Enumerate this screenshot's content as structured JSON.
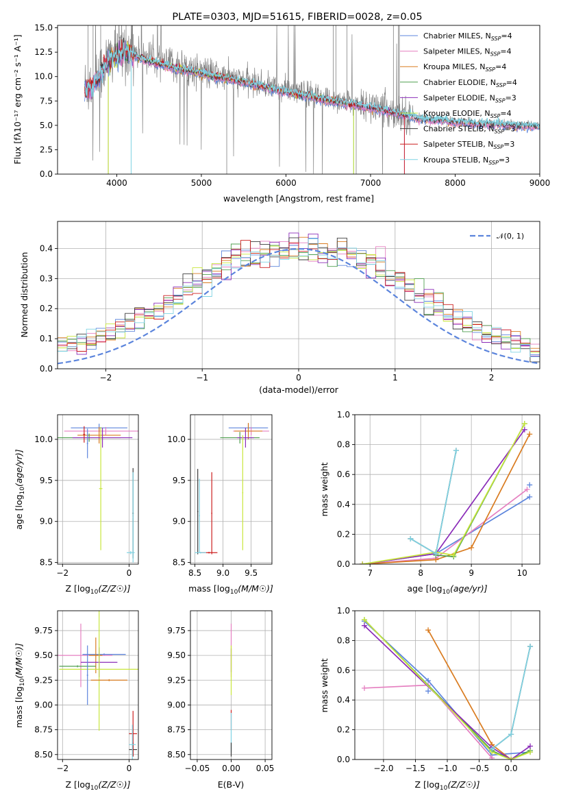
{
  "figure": {
    "title": "PLATE=0303, MJD=51615, FIBERID=0028, z=0.05"
  },
  "colors": [
    "#5b84dc",
    "#e57fc0",
    "#d97b1f",
    "#4f9f4f",
    "#8a2bb8",
    "#c8e63c",
    "#3a3a3a",
    "#cc1f1f",
    "#7fd3e3"
  ],
  "chart_data": [
    {
      "id": "spectrum",
      "type": "line",
      "xlabel": "wavelength [Angstrom, rest frame]",
      "ylabel": "Flux [f_λ 10^-17 erg cm^-2 s^-1 A^-1]",
      "xlim": [
        3300,
        9000
      ],
      "ylim": [
        0,
        15.25
      ],
      "xticks": [
        "4000",
        "5000",
        "6000",
        "7000",
        "8000",
        "9000"
      ],
      "yticks": [
        "0.0",
        "2.5",
        "5.0",
        "7.5",
        "10.0",
        "12.5",
        "15.0"
      ],
      "grid": false,
      "legend_position": "top-right",
      "data_color": "#808080",
      "observed_envelope": {
        "x": [
          3620,
          3700,
          3800,
          3900,
          4000,
          4100,
          4200,
          4300,
          4400,
          4500,
          4600,
          4700,
          4800,
          4900,
          5000,
          5200,
          5400,
          5600,
          5800,
          6000,
          6200,
          6400,
          6600,
          6800,
          7000,
          7200,
          7400,
          7600,
          7800,
          8000,
          8200,
          8400,
          8600,
          8800
        ],
        "y": [
          9.0,
          9.2,
          10.3,
          11.8,
          12.5,
          12.8,
          12.6,
          12.2,
          11.9,
          11.6,
          11.3,
          11.1,
          11.0,
          10.8,
          10.5,
          10.1,
          9.8,
          9.4,
          9.0,
          8.6,
          8.3,
          7.9,
          7.6,
          7.3,
          7.0,
          6.6,
          6.2,
          5.9,
          5.7,
          5.5,
          5.4,
          5.3,
          5.2,
          5.1
        ]
      },
      "model_curve": {
        "x": [
          3620,
          3700,
          3800,
          3900,
          4000,
          4100,
          4200,
          4300,
          4400,
          4500,
          4600,
          4700,
          4800,
          4900,
          5000,
          5200,
          5400,
          5600,
          5800,
          6000,
          6200,
          6400,
          6600,
          6800,
          7000,
          7200,
          7400,
          7600,
          7800,
          8000,
          8200,
          8400,
          8600,
          8800
        ],
        "y": [
          8.6,
          8.9,
          10.0,
          11.6,
          12.1,
          12.5,
          12.2,
          11.8,
          11.5,
          11.3,
          11.0,
          10.8,
          10.7,
          10.5,
          10.3,
          9.9,
          9.6,
          9.2,
          8.8,
          8.4,
          8.1,
          7.7,
          7.4,
          7.1,
          6.8,
          6.4,
          6.0,
          5.6,
          5.5,
          5.3,
          5.2,
          5.1,
          5.0,
          4.9
        ]
      },
      "legend": [
        {
          "label": "Chabrier MILES, N_SSP=4",
          "text": "Chabrier MILES, N",
          "sub": "SSP",
          "tail": "=4"
        },
        {
          "label": "Salpeter MILES, N_SSP=4",
          "text": "Salpeter MILES, N",
          "sub": "SSP",
          "tail": "=4"
        },
        {
          "label": "Kroupa MILES, N_SSP=4",
          "text": "Kroupa MILES, N",
          "sub": "SSP",
          "tail": "=4"
        },
        {
          "label": "Chabrier ELODIE, N_SSP=4",
          "text": "Chabrier ELODIE, N",
          "sub": "SSP",
          "tail": "=4"
        },
        {
          "label": "Salpeter ELODIE, N_SSP=3",
          "text": "Salpeter ELODIE, N",
          "sub": "SSP",
          "tail": "=3"
        },
        {
          "label": "Kroupa ELODIE, N_SSP=4",
          "text": "Kroupa ELODIE, N",
          "sub": "SSP",
          "tail": "=4"
        },
        {
          "label": "Chabrier STELIB, N_SSP=3",
          "text": "Chabrier STELIB, N",
          "sub": "SSP",
          "tail": "=3"
        },
        {
          "label": "Salpeter STELIB, N_SSP=3",
          "text": "Salpeter STELIB, N",
          "sub": "SSP",
          "tail": "=3"
        },
        {
          "label": "Kroupa STELIB, N_SSP=3",
          "text": "Kroupa STELIB, N",
          "sub": "SSP",
          "tail": "=3"
        }
      ]
    },
    {
      "id": "residuals",
      "type": "line",
      "xlabel": "(data-model)/error",
      "ylabel": "Normed distribution",
      "xlim": [
        -2.5,
        2.5
      ],
      "ylim": [
        0,
        0.49
      ],
      "xticks": [
        "−2",
        "−1",
        "0",
        "1",
        "2"
      ],
      "yticks": [
        "0.0",
        "0.1",
        "0.2",
        "0.3",
        "0.4"
      ],
      "grid": true,
      "legend_position": "top-right",
      "legend": [
        {
          "label": "𝒩(0, 1)",
          "style": "dashed",
          "color": "#5b84dc"
        }
      ],
      "normal_pdf": {
        "mu": 0,
        "sigma": 1
      }
    },
    {
      "id": "age_vs_Z",
      "type": "scatter",
      "xlabel": "Z [log10(Z/Z☉)]",
      "ylabel": "age [log10(age/yr)]",
      "xlim": [
        -2.15,
        0.28
      ],
      "ylim": [
        8.48,
        10.3
      ],
      "xticks": [
        "−2",
        "0"
      ],
      "yticks": [
        "8.5",
        "9.0",
        "9.5",
        "10.0"
      ],
      "grid": true,
      "errorbars": [
        {
          "series": 0,
          "x": -0.9,
          "y": 10.14,
          "xerr": 0.85,
          "yerr": 0.05
        },
        {
          "series": 1,
          "x": -0.7,
          "y": 10.1,
          "xerr": 1.25,
          "yerr": 0.05
        },
        {
          "series": 2,
          "x": -0.9,
          "y": 10.05,
          "xerr": 0.65,
          "yerr": 0.1
        },
        {
          "series": 3,
          "x": -1.2,
          "y": 10.02,
          "xerr": 0.95,
          "yerr": 0.05
        },
        {
          "series": 4,
          "x": -0.8,
          "y": 10.02,
          "xerr": 0.9,
          "yerr": 0.12
        },
        {
          "series": 5,
          "x": -0.85,
          "y": 9.4,
          "xerr": 0.05,
          "yerr": 0.75
        },
        {
          "series": 6,
          "x": 0.12,
          "y": 9.1,
          "xerr": 0.02,
          "yerr": 0.55
        },
        {
          "series": 7,
          "x": -1.35,
          "y": 10.06,
          "xerr": 0.03,
          "yerr": 0.1
        },
        {
          "series": 8,
          "x": 0.05,
          "y": 8.62,
          "xerr": 0.12,
          "yerr": 0.02
        },
        {
          "series": 0,
          "x": -1.25,
          "y": 9.95,
          "xerr": 0.02,
          "yerr": 0.18
        },
        {
          "series": 8,
          "x": 0.12,
          "y": 9.05,
          "xerr": 0.01,
          "yerr": 0.55
        }
      ]
    },
    {
      "id": "age_vs_mass",
      "type": "scatter",
      "xlabel": "mass [log10(M/M☉)]",
      "ylabel": "",
      "xlim": [
        8.42,
        9.87
      ],
      "ylim": [
        8.48,
        10.3
      ],
      "xticks": [
        "8.5",
        "9.0",
        "9.5"
      ],
      "yticks": [
        "8.5",
        "9.0",
        "9.5",
        "10.0"
      ],
      "grid": true,
      "errorbars": [
        {
          "series": 0,
          "x": 9.45,
          "y": 10.14,
          "xerr": 0.35,
          "yerr": 0.05
        },
        {
          "series": 1,
          "x": 9.5,
          "y": 10.1,
          "xerr": 0.32,
          "yerr": 0.05
        },
        {
          "series": 2,
          "x": 9.45,
          "y": 10.1,
          "xerr": 0.25,
          "yerr": 0.1
        },
        {
          "series": 3,
          "x": 9.3,
          "y": 10.02,
          "xerr": 0.35,
          "yerr": 0.07
        },
        {
          "series": 4,
          "x": 9.4,
          "y": 10.02,
          "xerr": 0.15,
          "yerr": 0.12
        },
        {
          "series": 5,
          "x": 9.35,
          "y": 9.35,
          "xerr": 0.01,
          "yerr": 0.7
        },
        {
          "series": 6,
          "x": 8.55,
          "y": 9.12,
          "xerr": 0.01,
          "yerr": 0.52
        },
        {
          "series": 7,
          "x": 8.8,
          "y": 9.1,
          "xerr": 0.01,
          "yerr": 0.5
        },
        {
          "series": 8,
          "x": 8.58,
          "y": 9.07,
          "xerr": 0.01,
          "yerr": 0.45
        },
        {
          "series": 7,
          "x": 8.75,
          "y": 8.62,
          "xerr": 0.15,
          "yerr": 0.01
        },
        {
          "series": 8,
          "x": 8.6,
          "y": 8.62,
          "xerr": 0.1,
          "yerr": 0.01
        }
      ]
    },
    {
      "id": "mass_weight_vs_age",
      "type": "line",
      "xlabel": "age [log10(age/yr)]",
      "ylabel": "mass weight",
      "xlim": [
        6.7,
        10.35
      ],
      "ylim": [
        0,
        1.0
      ],
      "xticks": [
        "7",
        "8",
        "9",
        "10"
      ],
      "yticks": [
        "0.0",
        "0.2",
        "0.4",
        "0.6",
        "0.8",
        "1.0"
      ],
      "grid": true,
      "series": [
        {
          "series": 0,
          "x": [
            6.85,
            8.3,
            10.15
          ],
          "y": [
            0.0,
            0.07,
            0.45
          ]
        },
        {
          "series": 0,
          "x": [
            10.15
          ],
          "y": [
            0.53
          ]
        },
        {
          "series": 1,
          "x": [
            6.85,
            8.3,
            10.1
          ],
          "y": [
            0.0,
            0.04,
            0.5
          ]
        },
        {
          "series": 2,
          "x": [
            6.85,
            8.3,
            9.0,
            10.15
          ],
          "y": [
            0.0,
            0.03,
            0.11,
            0.87
          ]
        },
        {
          "series": 3,
          "x": [
            8.3,
            8.65,
            10.05
          ],
          "y": [
            0.06,
            0.05,
            0.94
          ]
        },
        {
          "series": 4,
          "x": [
            6.85,
            8.3,
            10.05
          ],
          "y": [
            0.0,
            0.07,
            0.9
          ]
        },
        {
          "series": 5,
          "x": [
            6.85,
            8.3,
            8.65,
            10.05
          ],
          "y": [
            0.0,
            0.08,
            0.06,
            0.94
          ]
        },
        {
          "series": 6,
          "x": [
            7.8,
            8.3,
            8.7
          ],
          "y": [
            0.17,
            0.07,
            0.76
          ]
        },
        {
          "series": 8,
          "x": [
            7.8,
            8.3,
            8.7
          ],
          "y": [
            0.17,
            0.07,
            0.76
          ]
        }
      ]
    },
    {
      "id": "mass_vs_Z",
      "type": "scatter",
      "xlabel": "Z [log10(Z/Z☉)]",
      "ylabel": "mass [log10(M/M☉)]",
      "xlim": [
        -2.15,
        0.28
      ],
      "ylim": [
        8.45,
        9.95
      ],
      "xticks": [
        "−2",
        "0"
      ],
      "yticks": [
        "8.50",
        "8.75",
        "9.00",
        "9.25",
        "9.50",
        "9.75"
      ],
      "grid": true,
      "errorbars": [
        {
          "series": 0,
          "x": -0.75,
          "y": 9.51,
          "xerr": 0.65,
          "yerr": 0.01
        },
        {
          "series": 1,
          "x": -1.45,
          "y": 9.5,
          "xerr": 0.95,
          "yerr": 0.32
        },
        {
          "series": 2,
          "x": -1.0,
          "y": 9.5,
          "xerr": 0.2,
          "yerr": 0.18
        },
        {
          "series": 3,
          "x": -1.55,
          "y": 9.39,
          "xerr": 0.55,
          "yerr": 0.01
        },
        {
          "series": 4,
          "x": -0.9,
          "y": 9.43,
          "xerr": 0.55,
          "yerr": 0.15
        },
        {
          "series": 5,
          "x": -0.9,
          "y": 9.36,
          "xerr": 1.2,
          "yerr": 0.62
        },
        {
          "series": 6,
          "x": 0.12,
          "y": 8.55,
          "xerr": 0.12,
          "yerr": 0.07
        },
        {
          "series": 7,
          "x": 0.12,
          "y": 8.71,
          "xerr": 0.12,
          "yerr": 0.23
        },
        {
          "series": 8,
          "x": 0.1,
          "y": 8.6,
          "xerr": 0.1,
          "yerr": 0.2
        },
        {
          "series": 0,
          "x": -1.25,
          "y": 9.3,
          "xerr": 0.02,
          "yerr": 0.3
        },
        {
          "series": 2,
          "x": -0.6,
          "y": 9.25,
          "xerr": 0.55,
          "yerr": 0.01
        }
      ]
    },
    {
      "id": "mass_vs_ebv",
      "type": "scatter",
      "xlabel": "E(B-V)",
      "ylabel": "",
      "xlim": [
        -0.06,
        0.06
      ],
      "ylim": [
        8.45,
        9.95
      ],
      "xticks": [
        "−0.05",
        "0.00",
        "0.05"
      ],
      "yticks": [
        "8.50",
        "8.75",
        "9.00",
        "9.25",
        "9.50",
        "9.75"
      ],
      "grid": true,
      "errorbars": [
        {
          "series": 1,
          "x": 0.0,
          "y": 9.55,
          "xerr": 0.0,
          "yerr": 0.27
        },
        {
          "series": 4,
          "x": 0.0,
          "y": 9.45,
          "xerr": 0.0,
          "yerr": 0.12
        },
        {
          "series": 5,
          "x": 0.0,
          "y": 9.35,
          "xerr": 0.0,
          "yerr": 0.25
        },
        {
          "series": 7,
          "x": 0.0,
          "y": 8.85,
          "xerr": 0.0,
          "yerr": 0.1
        },
        {
          "series": 8,
          "x": 0.0,
          "y": 8.72,
          "xerr": 0.0,
          "yerr": 0.2
        },
        {
          "series": 6,
          "x": 0.0,
          "y": 8.55,
          "xerr": 0.0,
          "yerr": 0.07
        }
      ]
    },
    {
      "id": "mass_weight_vs_Z",
      "type": "line",
      "xlabel": "Z [log10(Z/Z☉)]",
      "ylabel": "mass weight",
      "xlim": [
        -2.45,
        0.45
      ],
      "ylim": [
        0,
        1.0
      ],
      "xticks": [
        "−2.0",
        "−1.5",
        "−1.0",
        "−0.5",
        "0.0"
      ],
      "yticks": [
        "0.0",
        "0.2",
        "0.4",
        "0.6",
        "0.8",
        "1.0"
      ],
      "grid": true,
      "series": [
        {
          "series": 0,
          "x": [
            -2.3,
            -1.3,
            -0.3,
            0.3
          ],
          "y": [
            0.93,
            0.53,
            0.03,
            0.05
          ]
        },
        {
          "series": 0,
          "x": [
            -1.3
          ],
          "y": [
            0.46
          ]
        },
        {
          "series": 1,
          "x": [
            -2.3,
            -1.3,
            -0.3
          ],
          "y": [
            0.48,
            0.5,
            0.01
          ]
        },
        {
          "series": 2,
          "x": [
            -1.3,
            -0.3,
            0.0
          ],
          "y": [
            0.87,
            0.1,
            0.0
          ]
        },
        {
          "series": 3,
          "x": [
            -2.3,
            -0.3,
            0.0,
            0.3
          ],
          "y": [
            0.94,
            0.06,
            0.0,
            0.06
          ]
        },
        {
          "series": 4,
          "x": [
            -2.3,
            -0.3,
            0.0,
            0.3
          ],
          "y": [
            0.9,
            0.08,
            0.0,
            0.09
          ]
        },
        {
          "series": 5,
          "x": [
            -2.3,
            -0.3,
            0.0,
            0.3
          ],
          "y": [
            0.94,
            0.05,
            0.0,
            0.05
          ]
        },
        {
          "series": 6,
          "x": [
            -0.3,
            0.0,
            0.3
          ],
          "y": [
            0.07,
            0.17,
            0.76
          ]
        },
        {
          "series": 8,
          "x": [
            -0.3,
            0.0,
            0.3
          ],
          "y": [
            0.07,
            0.17,
            0.76
          ]
        }
      ]
    }
  ]
}
